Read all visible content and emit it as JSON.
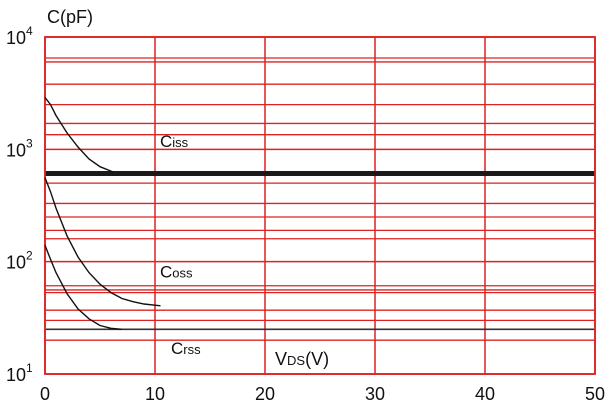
{
  "chart_data": {
    "type": "line",
    "title": "",
    "xlabel": "VDS(V)",
    "xlabel_main": "V",
    "xlabel_sub": "DS",
    "xlabel_tail": "(V)",
    "ylabel": "C(pF)",
    "xlim": [
      0,
      50
    ],
    "ylim": [
      10,
      10000
    ],
    "y_scale": "log",
    "x_ticks": [
      0,
      10,
      20,
      30,
      40,
      50
    ],
    "x_tick_labels": [
      "0",
      "10",
      "20",
      "30",
      "40",
      "50"
    ],
    "y_ticks": [
      10,
      100,
      1000,
      10000
    ],
    "y_tick_labels": [
      {
        "base": "10",
        "exp": "1"
      },
      {
        "base": "10",
        "exp": "2"
      },
      {
        "base": "10",
        "exp": "3"
      },
      {
        "base": "10",
        "exp": "4"
      }
    ],
    "grid": true,
    "grid_color": "#dd2222",
    "gray_line_color": "#333333",
    "extra_red_gridlines_y": [
      6500,
      6000,
      3800,
      2500,
      1700,
      1350,
      500,
      330,
      250,
      190,
      160,
      61,
      56,
      53,
      37,
      30,
      20
    ],
    "gray_gridline_y": 25,
    "bold_line_y": 610,
    "series": [
      {
        "name": "Ciss",
        "label_main": "C",
        "label_sub": "iss",
        "label_at": {
          "x": 10,
          "y": 1050
        },
        "x": [
          0,
          0.5,
          1,
          2,
          3,
          4,
          5,
          6,
          6.2
        ],
        "y": [
          2900,
          2500,
          2000,
          1400,
          1050,
          820,
          700,
          640,
          630
        ]
      },
      {
        "name": "Coss",
        "label_main": "C",
        "label_sub": "oss",
        "label_at": {
          "x": 10,
          "y": 72
        },
        "x": [
          0,
          0.5,
          1,
          2,
          3,
          4,
          5,
          6,
          7,
          8,
          9,
          10,
          10.5
        ],
        "y": [
          560,
          420,
          300,
          170,
          110,
          80,
          63,
          53,
          47,
          44,
          42,
          41,
          40.5
        ]
      },
      {
        "name": "Crss",
        "label_main": "C",
        "label_sub": "rss",
        "label_at": {
          "x": 11,
          "y": 15
        },
        "x": [
          0,
          0.5,
          1,
          2,
          3,
          4,
          5,
          6,
          7
        ],
        "y": [
          140,
          105,
          80,
          52,
          38,
          31,
          27,
          25.5,
          25
        ]
      }
    ]
  }
}
